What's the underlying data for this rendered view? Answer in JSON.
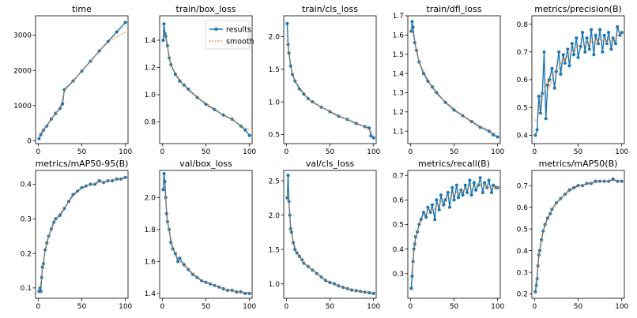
{
  "chart_data": [
    {
      "type": "line",
      "title": "time",
      "xlim": [
        -3,
        103
      ],
      "ylim": [
        -80,
        3550
      ],
      "xticks": [
        0,
        50,
        100
      ],
      "yticks": [
        0,
        1000,
        2000,
        3000
      ],
      "series": [
        {
          "name": "results",
          "x": [
            1,
            3,
            6,
            10,
            15,
            20,
            25,
            28,
            30,
            40,
            50,
            60,
            70,
            80,
            90,
            100
          ],
          "y": [
            60,
            170,
            300,
            420,
            620,
            780,
            920,
            1050,
            1450,
            1700,
            1980,
            2260,
            2550,
            2820,
            3090,
            3360
          ]
        }
      ]
    },
    {
      "type": "line",
      "title": "train/box_loss",
      "xlim": [
        -3,
        103
      ],
      "ylim": [
        0.64,
        1.58
      ],
      "xticks": [
        0,
        50,
        100
      ],
      "yticks": [
        0.8,
        1.0,
        1.2,
        1.4
      ],
      "legend": {
        "results": "results",
        "smooth": "smooth",
        "placement": "upper-right"
      },
      "series": [
        {
          "name": "results",
          "x": [
            1,
            2,
            3,
            4,
            6,
            8,
            10,
            15,
            20,
            25,
            30,
            40,
            50,
            60,
            70,
            80,
            90,
            95,
            100
          ],
          "y": [
            1.4,
            1.52,
            1.45,
            1.43,
            1.36,
            1.27,
            1.22,
            1.15,
            1.1,
            1.07,
            1.04,
            0.98,
            0.93,
            0.89,
            0.85,
            0.82,
            0.77,
            0.74,
            0.7
          ]
        }
      ]
    },
    {
      "type": "line",
      "title": "train/cls_loss",
      "xlim": [
        -3,
        103
      ],
      "ylim": [
        0.36,
        2.32
      ],
      "xticks": [
        0,
        50,
        100
      ],
      "yticks": [
        0.5,
        1.0,
        1.5,
        2.0
      ],
      "series": [
        {
          "name": "results",
          "x": [
            1,
            2,
            3,
            5,
            7,
            10,
            15,
            20,
            25,
            30,
            40,
            50,
            60,
            70,
            80,
            90,
            95,
            97,
            100
          ],
          "y": [
            2.2,
            1.88,
            1.75,
            1.55,
            1.42,
            1.32,
            1.2,
            1.12,
            1.05,
            1.0,
            0.92,
            0.85,
            0.78,
            0.73,
            0.67,
            0.62,
            0.6,
            0.48,
            0.45
          ]
        }
      ]
    },
    {
      "type": "line",
      "title": "train/dfl_loss",
      "xlim": [
        -3,
        103
      ],
      "ylim": [
        1.035,
        1.7
      ],
      "xticks": [
        0,
        50,
        100
      ],
      "yticks": [
        1.1,
        1.2,
        1.3,
        1.4,
        1.5,
        1.6,
        1.7
      ],
      "series": [
        {
          "name": "results",
          "x": [
            1,
            2,
            3,
            5,
            7,
            10,
            15,
            20,
            25,
            30,
            40,
            50,
            60,
            70,
            80,
            90,
            95,
            100
          ],
          "y": [
            1.62,
            1.67,
            1.64,
            1.56,
            1.52,
            1.46,
            1.4,
            1.36,
            1.33,
            1.3,
            1.25,
            1.21,
            1.18,
            1.15,
            1.12,
            1.1,
            1.08,
            1.07
          ]
        }
      ]
    },
    {
      "type": "line",
      "title": "metrics/precision(B)",
      "xlim": [
        -3,
        103
      ],
      "ylim": [
        0.37,
        0.83
      ],
      "xticks": [
        0,
        50,
        100
      ],
      "yticks": [
        0.4,
        0.5,
        0.6,
        0.7,
        0.8
      ],
      "series": [
        {
          "name": "results",
          "x": [
            1,
            3,
            5,
            7,
            9,
            11,
            13,
            15,
            17,
            20,
            23,
            25,
            28,
            30,
            33,
            35,
            38,
            40,
            43,
            45,
            48,
            50,
            53,
            55,
            58,
            60,
            63,
            65,
            68,
            70,
            73,
            75,
            78,
            80,
            83,
            85,
            88,
            90,
            93,
            95,
            98,
            100
          ],
          "y": [
            0.4,
            0.42,
            0.54,
            0.48,
            0.55,
            0.7,
            0.46,
            0.58,
            0.6,
            0.64,
            0.57,
            0.63,
            0.7,
            0.62,
            0.69,
            0.66,
            0.71,
            0.65,
            0.73,
            0.69,
            0.75,
            0.68,
            0.72,
            0.77,
            0.7,
            0.75,
            0.71,
            0.78,
            0.69,
            0.76,
            0.73,
            0.78,
            0.7,
            0.76,
            0.73,
            0.77,
            0.71,
            0.75,
            0.73,
            0.79,
            0.76,
            0.77
          ]
        }
      ]
    },
    {
      "type": "line",
      "title": "metrics/mAP50-95(B)",
      "xlim": [
        -3,
        103
      ],
      "ylim": [
        0.07,
        0.44
      ],
      "xticks": [
        0,
        50,
        100
      ],
      "yticks": [
        0.1,
        0.2,
        0.3,
        0.4
      ],
      "series": [
        {
          "name": "results",
          "x": [
            1,
            2,
            3,
            4,
            5,
            6,
            8,
            10,
            12,
            15,
            18,
            20,
            25,
            30,
            35,
            40,
            45,
            50,
            55,
            60,
            65,
            70,
            75,
            80,
            85,
            90,
            95,
            100
          ],
          "y": [
            0.09,
            0.1,
            0.09,
            0.13,
            0.16,
            0.17,
            0.21,
            0.23,
            0.25,
            0.27,
            0.29,
            0.3,
            0.31,
            0.33,
            0.35,
            0.37,
            0.38,
            0.39,
            0.395,
            0.4,
            0.4,
            0.41,
            0.405,
            0.41,
            0.41,
            0.415,
            0.415,
            0.42
          ]
        }
      ]
    },
    {
      "type": "line",
      "title": "val/box_loss",
      "xlim": [
        -3,
        103
      ],
      "ylim": [
        1.37,
        2.17
      ],
      "xticks": [
        0,
        50,
        100
      ],
      "yticks": [
        1.4,
        1.6,
        1.8,
        2.0
      ],
      "series": [
        {
          "name": "results",
          "x": [
            1,
            2,
            3,
            4,
            5,
            6,
            8,
            10,
            12,
            15,
            18,
            20,
            25,
            30,
            35,
            40,
            45,
            50,
            55,
            60,
            65,
            70,
            75,
            80,
            85,
            90,
            95,
            100
          ],
          "y": [
            2.05,
            2.15,
            2.1,
            2.0,
            1.9,
            1.85,
            1.8,
            1.72,
            1.68,
            1.65,
            1.6,
            1.62,
            1.58,
            1.55,
            1.52,
            1.5,
            1.48,
            1.47,
            1.46,
            1.45,
            1.44,
            1.43,
            1.42,
            1.42,
            1.41,
            1.41,
            1.4,
            1.4
          ]
        }
      ]
    },
    {
      "type": "line",
      "title": "val/cls_loss",
      "xlim": [
        -3,
        103
      ],
      "ylim": [
        0.79,
        2.65
      ],
      "xticks": [
        0,
        50,
        100
      ],
      "yticks": [
        1.0,
        1.5,
        2.0,
        2.5
      ],
      "series": [
        {
          "name": "results",
          "x": [
            1,
            2,
            3,
            4,
            5,
            6,
            8,
            10,
            12,
            15,
            18,
            20,
            25,
            30,
            35,
            40,
            45,
            50,
            55,
            60,
            65,
            70,
            75,
            80,
            85,
            90,
            95,
            100
          ],
          "y": [
            2.25,
            2.58,
            2.2,
            2.0,
            1.8,
            1.75,
            1.6,
            1.5,
            1.45,
            1.4,
            1.35,
            1.3,
            1.25,
            1.2,
            1.15,
            1.1,
            1.05,
            1.02,
            1.0,
            0.97,
            0.95,
            0.93,
            0.91,
            0.9,
            0.89,
            0.88,
            0.87,
            0.86
          ]
        }
      ]
    },
    {
      "type": "line",
      "title": "metrics/recall(B)",
      "xlim": [
        -3,
        103
      ],
      "ylim": [
        0.2,
        0.72
      ],
      "xticks": [
        0,
        50,
        100
      ],
      "yticks": [
        0.3,
        0.4,
        0.5,
        0.6,
        0.7
      ],
      "series": [
        {
          "name": "results",
          "x": [
            1,
            2,
            3,
            4,
            5,
            6,
            8,
            10,
            12,
            15,
            18,
            20,
            23,
            25,
            28,
            30,
            33,
            35,
            38,
            40,
            43,
            45,
            48,
            50,
            53,
            55,
            58,
            60,
            63,
            65,
            68,
            70,
            73,
            75,
            78,
            80,
            83,
            85,
            88,
            90,
            93,
            95,
            98,
            100
          ],
          "y": [
            0.24,
            0.29,
            0.35,
            0.4,
            0.42,
            0.45,
            0.47,
            0.5,
            0.52,
            0.55,
            0.53,
            0.57,
            0.55,
            0.58,
            0.52,
            0.6,
            0.56,
            0.62,
            0.58,
            0.6,
            0.63,
            0.57,
            0.65,
            0.6,
            0.66,
            0.61,
            0.64,
            0.62,
            0.66,
            0.63,
            0.68,
            0.62,
            0.67,
            0.64,
            0.66,
            0.69,
            0.63,
            0.67,
            0.65,
            0.68,
            0.63,
            0.66,
            0.65,
            0.65
          ]
        }
      ]
    },
    {
      "type": "line",
      "title": "metrics/mAP50(B)",
      "xlim": [
        -3,
        103
      ],
      "ylim": [
        0.18,
        0.77
      ],
      "xticks": [
        0,
        50,
        100
      ],
      "yticks": [
        0.2,
        0.3,
        0.4,
        0.5,
        0.6,
        0.7
      ],
      "series": [
        {
          "name": "results",
          "x": [
            1,
            2,
            3,
            4,
            5,
            6,
            8,
            10,
            12,
            15,
            18,
            20,
            25,
            30,
            35,
            40,
            45,
            50,
            55,
            60,
            65,
            70,
            75,
            80,
            85,
            90,
            95,
            100
          ],
          "y": [
            0.21,
            0.24,
            0.27,
            0.33,
            0.38,
            0.4,
            0.45,
            0.49,
            0.52,
            0.55,
            0.57,
            0.59,
            0.62,
            0.64,
            0.66,
            0.68,
            0.69,
            0.7,
            0.7,
            0.71,
            0.71,
            0.72,
            0.72,
            0.72,
            0.72,
            0.73,
            0.72,
            0.72
          ]
        }
      ]
    }
  ]
}
